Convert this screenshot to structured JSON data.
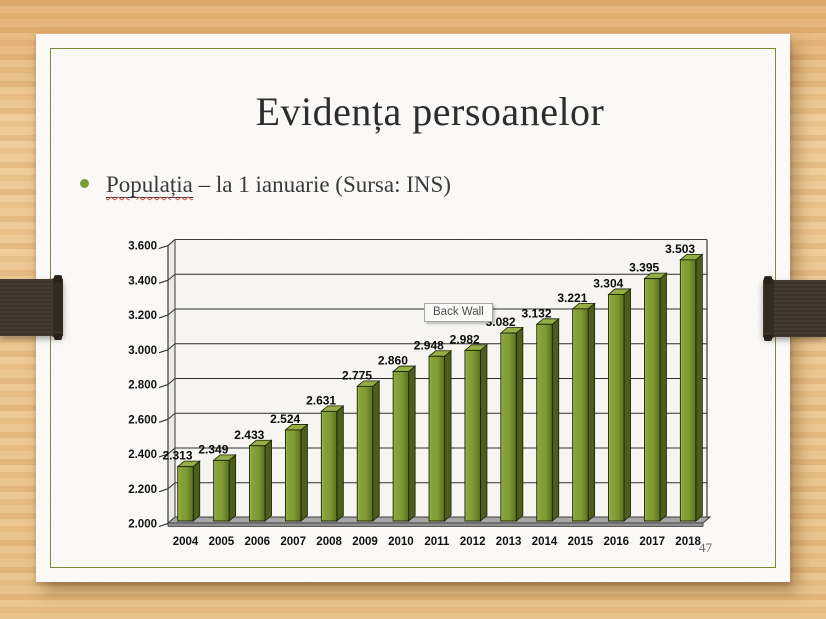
{
  "slide": {
    "title": "Evidența persoanelor",
    "bullet": {
      "term": "Populația",
      "rest": " – la 1 ianuarie (Sursa: INS)"
    },
    "tooltip": "Back Wall",
    "page_number": "47"
  },
  "colors": {
    "accent_green": "#7b8b33",
    "wood": "#eac38b",
    "strap_brown": "#40352a",
    "paper": "#fbfaf8",
    "bar_front": "#7e9b31",
    "bar_front_light": "#a3bf55",
    "bar_front_dark": "#5a6f21",
    "bar_side": "#4d5e1b",
    "bar_top": "#94ad45",
    "floor_gray": "#a6a6a6",
    "grid_line": "#2e2e2e"
  },
  "chart_data": {
    "type": "bar",
    "style": "3d-column",
    "title": "",
    "xlabel": "",
    "ylabel": "",
    "categories": [
      "2004",
      "2005",
      "2006",
      "2007",
      "2008",
      "2009",
      "2010",
      "2011",
      "2012",
      "2013",
      "2014",
      "2015",
      "2016",
      "2017",
      "2018"
    ],
    "values": [
      2.313,
      2.349,
      2.433,
      2.524,
      2.631,
      2.775,
      2.86,
      2.948,
      2.982,
      3.082,
      3.132,
      3.221,
      3.304,
      3.395,
      3.503
    ],
    "value_labels": [
      "2.313",
      "2.349",
      "2.433",
      "2.524",
      "2.631",
      "2.775",
      "2.860",
      "2.948",
      "2.982",
      "3.082",
      "3.132",
      "3.221",
      "3.304",
      "3.395",
      "3.503"
    ],
    "ylim": [
      2.0,
      3.6
    ],
    "ytick_step": 0.2,
    "ytick_labels": [
      "3.600",
      "3.400",
      "3.200",
      "3.000",
      "2.800",
      "2.600",
      "2.400",
      "2.200",
      "2.000"
    ],
    "grid": true,
    "legend": "none",
    "hovered_element": "Back Wall"
  }
}
